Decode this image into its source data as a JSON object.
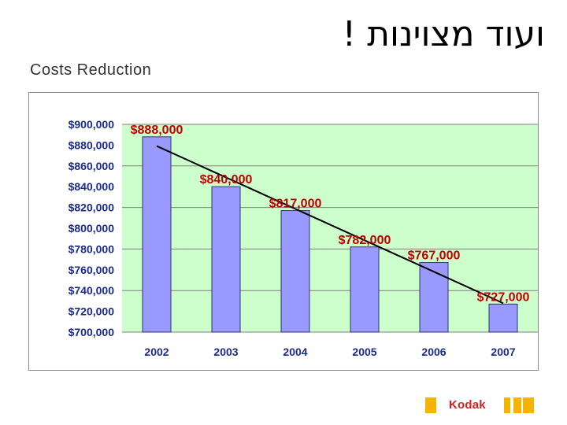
{
  "header": {
    "title": "ועוד מצוינות !",
    "subtitle": "Costs Reduction"
  },
  "logo": {
    "text": "Kodak",
    "colors": {
      "yellow": "#f5b400",
      "red": "#d22222"
    }
  },
  "colors": {
    "plot_background": "#ccffcc",
    "bar_fill": "#9999ff",
    "bar_stroke": "#333366",
    "gridline": "#7f7f7f",
    "trendline": "#000000",
    "data_label": "#c00000",
    "tick_label": "#1a2b8c"
  },
  "chart_data": {
    "type": "bar",
    "categories": [
      "2002",
      "2003",
      "2004",
      "2005",
      "2006",
      "2007"
    ],
    "values": [
      888000,
      840000,
      817000,
      782000,
      767000,
      727000
    ],
    "data_labels": [
      "$888,000",
      "$840,000",
      "$817,000",
      "$782,000",
      "$767,000",
      "$727,000"
    ],
    "y_ticks": [
      {
        "value": 900000,
        "label": "$900,000"
      },
      {
        "value": 880000,
        "label": "$880,000"
      },
      {
        "value": 860000,
        "label": "$860,000"
      },
      {
        "value": 840000,
        "label": "$840,000"
      },
      {
        "value": 820000,
        "label": "$820,000"
      },
      {
        "value": 800000,
        "label": "$800,000"
      },
      {
        "value": 780000,
        "label": "$780,000"
      },
      {
        "value": 760000,
        "label": "$760,000"
      },
      {
        "value": 740000,
        "label": "$740,000"
      },
      {
        "value": 720000,
        "label": "$720,000"
      },
      {
        "value": 700000,
        "label": "$700,000"
      }
    ],
    "ylim": [
      700000,
      900000
    ],
    "gridlines_at": [
      900000,
      860000,
      820000,
      780000,
      740000,
      700000
    ],
    "grid": true,
    "legend": "none",
    "trendline": {
      "type": "linear",
      "from_category": "2002",
      "to_category": "2007"
    }
  }
}
